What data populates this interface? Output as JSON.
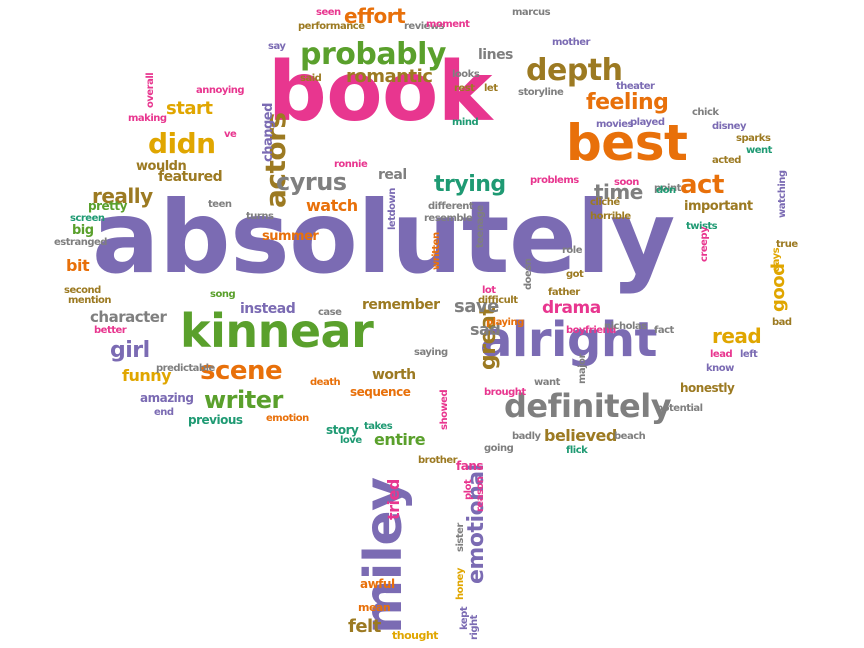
{
  "colors": {
    "magenta": "#e8368f",
    "purple": "#7b6bb3",
    "green": "#5aa02c",
    "orange": "#e8700a",
    "gold": "#e0a600",
    "olive": "#9c7a22",
    "gray": "#7f7f7f",
    "teal": "#1f9a73"
  },
  "words": [
    {
      "text": "absolutely",
      "color": "purple"
    },
    {
      "text": "book",
      "color": "magenta"
    },
    {
      "text": "best",
      "color": "orange"
    },
    {
      "text": "kinnear",
      "color": "green"
    },
    {
      "text": "alright",
      "color": "purple"
    },
    {
      "text": "miley",
      "color": "purple"
    },
    {
      "text": "really",
      "color": "olive"
    },
    {
      "text": "definitely",
      "color": "gray"
    },
    {
      "text": "probably",
      "color": "green"
    },
    {
      "text": "depth",
      "color": "olive"
    },
    {
      "text": "actors",
      "color": "olive"
    },
    {
      "text": "didn",
      "color": "gold"
    },
    {
      "text": "cyrus",
      "color": "gray"
    },
    {
      "text": "act",
      "color": "orange"
    },
    {
      "text": "scene",
      "color": "orange"
    },
    {
      "text": "writer",
      "color": "green"
    },
    {
      "text": "feeling",
      "color": "orange"
    },
    {
      "text": "trying",
      "color": "teal"
    },
    {
      "text": "time",
      "color": "gray"
    },
    {
      "text": "romantic",
      "color": "olive"
    },
    {
      "text": "effort",
      "color": "orange"
    },
    {
      "text": "start",
      "color": "gold"
    },
    {
      "text": "lines",
      "color": "gray"
    },
    {
      "text": "watch",
      "color": "orange"
    },
    {
      "text": "real",
      "color": "gray"
    },
    {
      "text": "featured",
      "color": "olive"
    },
    {
      "text": "wouldn",
      "color": "olive"
    },
    {
      "text": "girl",
      "color": "purple"
    },
    {
      "text": "character",
      "color": "gray"
    },
    {
      "text": "instead",
      "color": "purple"
    },
    {
      "text": "remember",
      "color": "olive"
    },
    {
      "text": "great",
      "color": "olive"
    },
    {
      "text": "save",
      "color": "gray"
    },
    {
      "text": "sad",
      "color": "gray"
    },
    {
      "text": "drama",
      "color": "magenta"
    },
    {
      "text": "read",
      "color": "gold"
    },
    {
      "text": "good",
      "color": "gold"
    },
    {
      "text": "funny",
      "color": "gold"
    },
    {
      "text": "worth",
      "color": "olive"
    },
    {
      "text": "amazing",
      "color": "purple"
    },
    {
      "text": "previous",
      "color": "teal"
    },
    {
      "text": "believed",
      "color": "olive"
    },
    {
      "text": "entire",
      "color": "green"
    },
    {
      "text": "emotional",
      "color": "purple"
    },
    {
      "text": "felt",
      "color": "olive"
    },
    {
      "text": "tried",
      "color": "magenta"
    },
    {
      "text": "fans",
      "color": "magenta"
    },
    {
      "text": "bit",
      "color": "orange"
    },
    {
      "text": "big",
      "color": "green"
    },
    {
      "text": "important",
      "color": "olive"
    },
    {
      "text": "honestly",
      "color": "olive"
    },
    {
      "text": "changed",
      "color": "purple"
    },
    {
      "text": "summer",
      "color": "orange"
    },
    {
      "text": "sequence",
      "color": "orange"
    },
    {
      "text": "story",
      "color": "teal"
    },
    {
      "text": "pretty",
      "color": "green"
    },
    {
      "text": "screen",
      "color": "teal"
    },
    {
      "text": "estranged",
      "color": "gray"
    },
    {
      "text": "second",
      "color": "olive"
    },
    {
      "text": "mention",
      "color": "olive"
    },
    {
      "text": "better",
      "color": "magenta"
    },
    {
      "text": "predictable",
      "color": "gray"
    },
    {
      "text": "end",
      "color": "purple"
    },
    {
      "text": "emotion",
      "color": "orange"
    },
    {
      "text": "takes",
      "color": "teal"
    },
    {
      "text": "love",
      "color": "teal"
    },
    {
      "text": "brother",
      "color": "olive"
    },
    {
      "text": "plot",
      "color": "magenta"
    },
    {
      "text": "reason",
      "color": "magenta"
    },
    {
      "text": "awful",
      "color": "orange"
    },
    {
      "text": "mean",
      "color": "orange"
    },
    {
      "text": "thought",
      "color": "gold"
    },
    {
      "text": "honey",
      "color": "gold"
    },
    {
      "text": "kept",
      "color": "purple"
    },
    {
      "text": "right",
      "color": "purple"
    },
    {
      "text": "sister",
      "color": "gray"
    },
    {
      "text": "seen",
      "color": "magenta"
    },
    {
      "text": "performance",
      "color": "olive"
    },
    {
      "text": "reviews",
      "color": "gray"
    },
    {
      "text": "moment",
      "color": "magenta"
    },
    {
      "text": "marcus",
      "color": "gray"
    },
    {
      "text": "mother",
      "color": "purple"
    },
    {
      "text": "say",
      "color": "purple"
    },
    {
      "text": "said",
      "color": "olive"
    },
    {
      "text": "looks",
      "color": "gray"
    },
    {
      "text": "rest",
      "color": "olive"
    },
    {
      "text": "let",
      "color": "olive"
    },
    {
      "text": "storyline",
      "color": "gray"
    },
    {
      "text": "theater",
      "color": "purple"
    },
    {
      "text": "annoying",
      "color": "magenta"
    },
    {
      "text": "overall",
      "color": "magenta"
    },
    {
      "text": "making",
      "color": "magenta"
    },
    {
      "text": "ve",
      "color": "magenta"
    },
    {
      "text": "mind",
      "color": "teal"
    },
    {
      "text": "movies",
      "color": "purple"
    },
    {
      "text": "played",
      "color": "purple"
    },
    {
      "text": "chick",
      "color": "gray"
    },
    {
      "text": "disney",
      "color": "purple"
    },
    {
      "text": "sparks",
      "color": "olive"
    },
    {
      "text": "went",
      "color": "teal"
    },
    {
      "text": "acted",
      "color": "olive"
    },
    {
      "text": "ronnie",
      "color": "magenta"
    },
    {
      "text": "soon",
      "color": "magenta"
    },
    {
      "text": "problems",
      "color": "magenta"
    },
    {
      "text": "point",
      "color": "gray"
    },
    {
      "text": "don",
      "color": "teal"
    },
    {
      "text": "watching",
      "color": "purple"
    },
    {
      "text": "teen",
      "color": "gray"
    },
    {
      "text": "turns",
      "color": "gray"
    },
    {
      "text": "letdown",
      "color": "purple"
    },
    {
      "text": "different",
      "color": "gray"
    },
    {
      "text": "resemble",
      "color": "gray"
    },
    {
      "text": "cliché",
      "color": "olive"
    },
    {
      "text": "horrible",
      "color": "olive"
    },
    {
      "text": "twists",
      "color": "teal"
    },
    {
      "text": "creepy",
      "color": "magenta"
    },
    {
      "text": "true",
      "color": "olive"
    },
    {
      "text": "days",
      "color": "gold"
    },
    {
      "text": "written",
      "color": "orange"
    },
    {
      "text": "teenage",
      "color": "gray"
    },
    {
      "text": "role",
      "color": "gray"
    },
    {
      "text": "got",
      "color": "olive"
    },
    {
      "text": "song",
      "color": "green"
    },
    {
      "text": "lot",
      "color": "magenta"
    },
    {
      "text": "difficult",
      "color": "olive"
    },
    {
      "text": "doesn",
      "color": "gray"
    },
    {
      "text": "father",
      "color": "olive"
    },
    {
      "text": "bad",
      "color": "olive"
    },
    {
      "text": "case",
      "color": "gray"
    },
    {
      "text": "playing",
      "color": "orange"
    },
    {
      "text": "boyfriend",
      "color": "magenta"
    },
    {
      "text": "nicholas",
      "color": "gray"
    },
    {
      "text": "fact",
      "color": "gray"
    },
    {
      "text": "lead",
      "color": "magenta"
    },
    {
      "text": "left",
      "color": "purple"
    },
    {
      "text": "know",
      "color": "purple"
    },
    {
      "text": "saying",
      "color": "gray"
    },
    {
      "text": "death",
      "color": "orange"
    },
    {
      "text": "major",
      "color": "gray"
    },
    {
      "text": "want",
      "color": "gray"
    },
    {
      "text": "brought",
      "color": "magenta"
    },
    {
      "text": "showed",
      "color": "magenta"
    },
    {
      "text": "potential",
      "color": "gray"
    },
    {
      "text": "badly",
      "color": "gray"
    },
    {
      "text": "going",
      "color": "gray"
    },
    {
      "text": "beach",
      "color": "gray"
    },
    {
      "text": "flick",
      "color": "teal"
    },
    {
      "text": "understand",
      "color": "teal"
    }
  ]
}
